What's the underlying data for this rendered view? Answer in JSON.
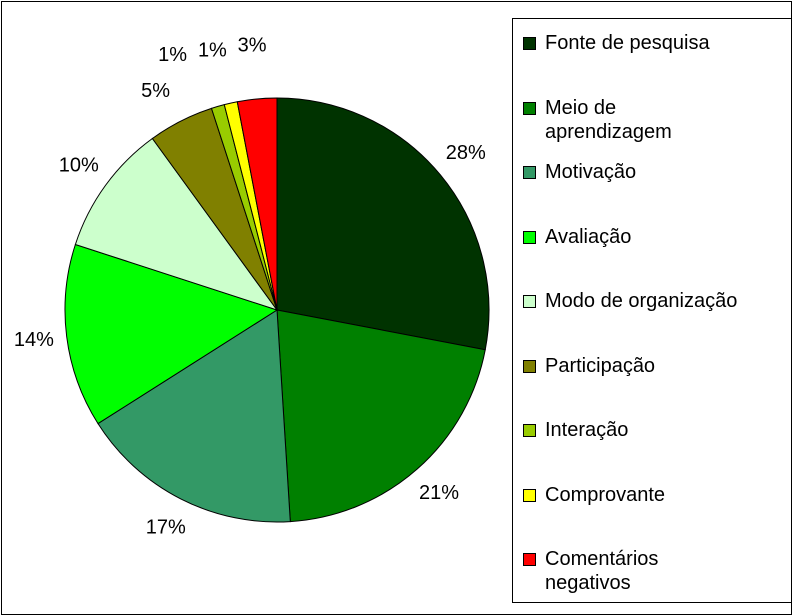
{
  "chart_data": {
    "type": "pie",
    "categories": [
      "Fonte de pesquisa",
      "Meio de\naprendizagem",
      "Motivação",
      "Avaliação",
      "Modo de organização",
      "Participação",
      "Interação",
      "Comprovante",
      "Comentários\nnegativos"
    ],
    "values": [
      28,
      21,
      17,
      14,
      10,
      5,
      1,
      1,
      3
    ],
    "value_labels": [
      "28%",
      "21%",
      "17%",
      "14%",
      "10%",
      "5%",
      "1%",
      "1%",
      "3%"
    ],
    "colors": [
      "#003300",
      "#008000",
      "#339966",
      "#00ff00",
      "#ccffcc",
      "#808000",
      "#99cc00",
      "#ffff00",
      "#ff0000"
    ],
    "legend": "right"
  }
}
